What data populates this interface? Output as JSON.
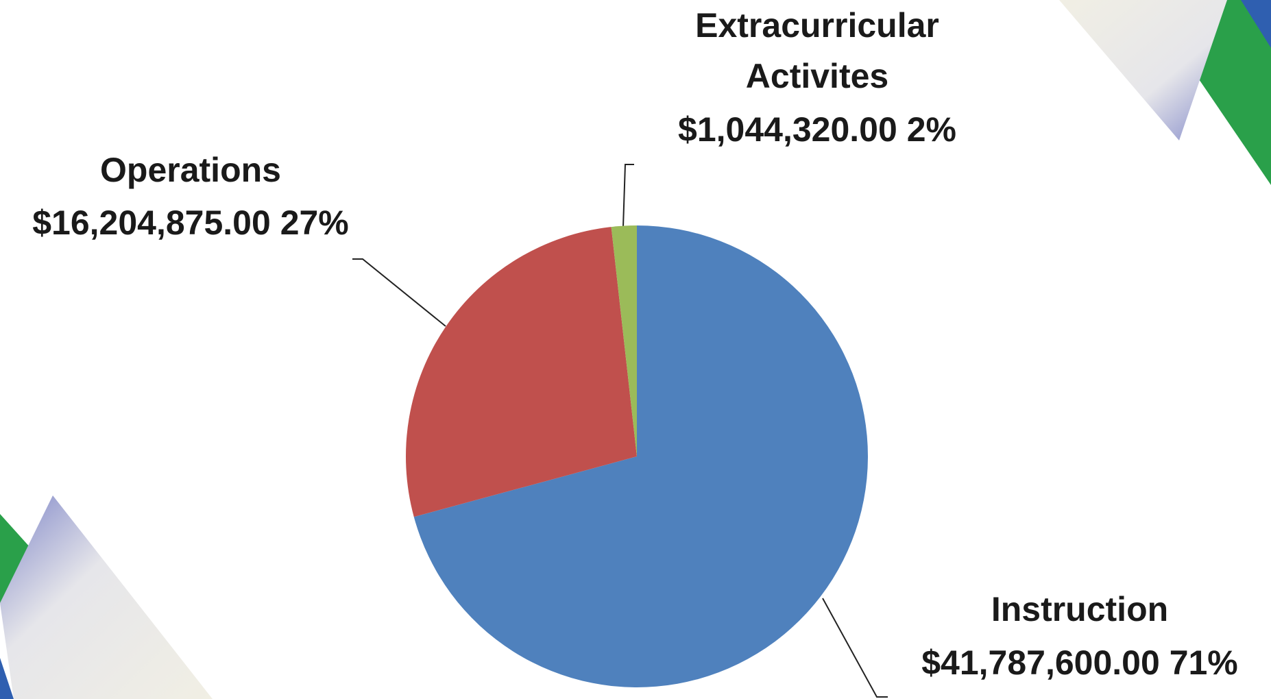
{
  "chart_data": {
    "type": "pie",
    "categories": [
      "Instruction",
      "Operations",
      "Extracurricular Activites"
    ],
    "values": [
      41787600,
      16204875,
      1044320
    ],
    "value_labels": [
      "$41,787,600.00",
      "$16,204,875.00",
      "$1,044,320.00"
    ],
    "percentage_labels": [
      "71%",
      "27%",
      "2%"
    ],
    "colors": [
      "#4f81bd",
      "#c0504d",
      "#9bbb59"
    ]
  }
}
